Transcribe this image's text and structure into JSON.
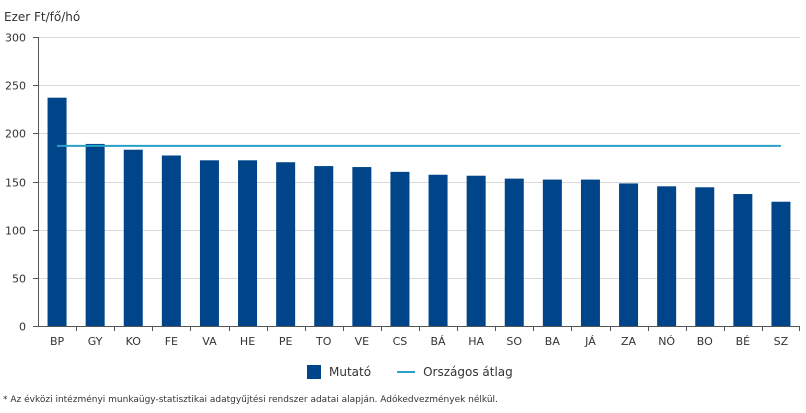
{
  "chart_data": {
    "type": "bar",
    "ylabel": "Ezer Ft/fő/hó",
    "ylim": [
      0,
      300
    ],
    "yticks": [
      0,
      50,
      100,
      150,
      200,
      250,
      300
    ],
    "grid": true,
    "categories": [
      "BP",
      "GY",
      "KO",
      "FE",
      "VA",
      "HE",
      "PE",
      "TO",
      "VE",
      "CS",
      "BÁ",
      "HA",
      "SO",
      "BA",
      "JÁ",
      "ZA",
      "NÓ",
      "BO",
      "BÉ",
      "SZ"
    ],
    "series": [
      {
        "name": "Mutató",
        "type": "bar",
        "color": "#004489",
        "values": [
          237,
          189,
          183,
          177,
          172,
          172,
          170,
          166,
          165,
          160,
          157,
          156,
          153,
          152,
          152,
          148,
          145,
          144,
          137,
          129
        ]
      }
    ],
    "reference_line": {
      "name": "Országos átlag",
      "value": 187,
      "color": "#2aa0c8"
    },
    "legend_position": "bottom-center"
  },
  "legend": {
    "bar_label": "Mutató",
    "line_label": "Országos átlag"
  },
  "footnote": "* Az évközi intézményi munkaügy-statisztikai adatgyűjtési rendszer adatai alapján. Adókedvezmények nélkül."
}
